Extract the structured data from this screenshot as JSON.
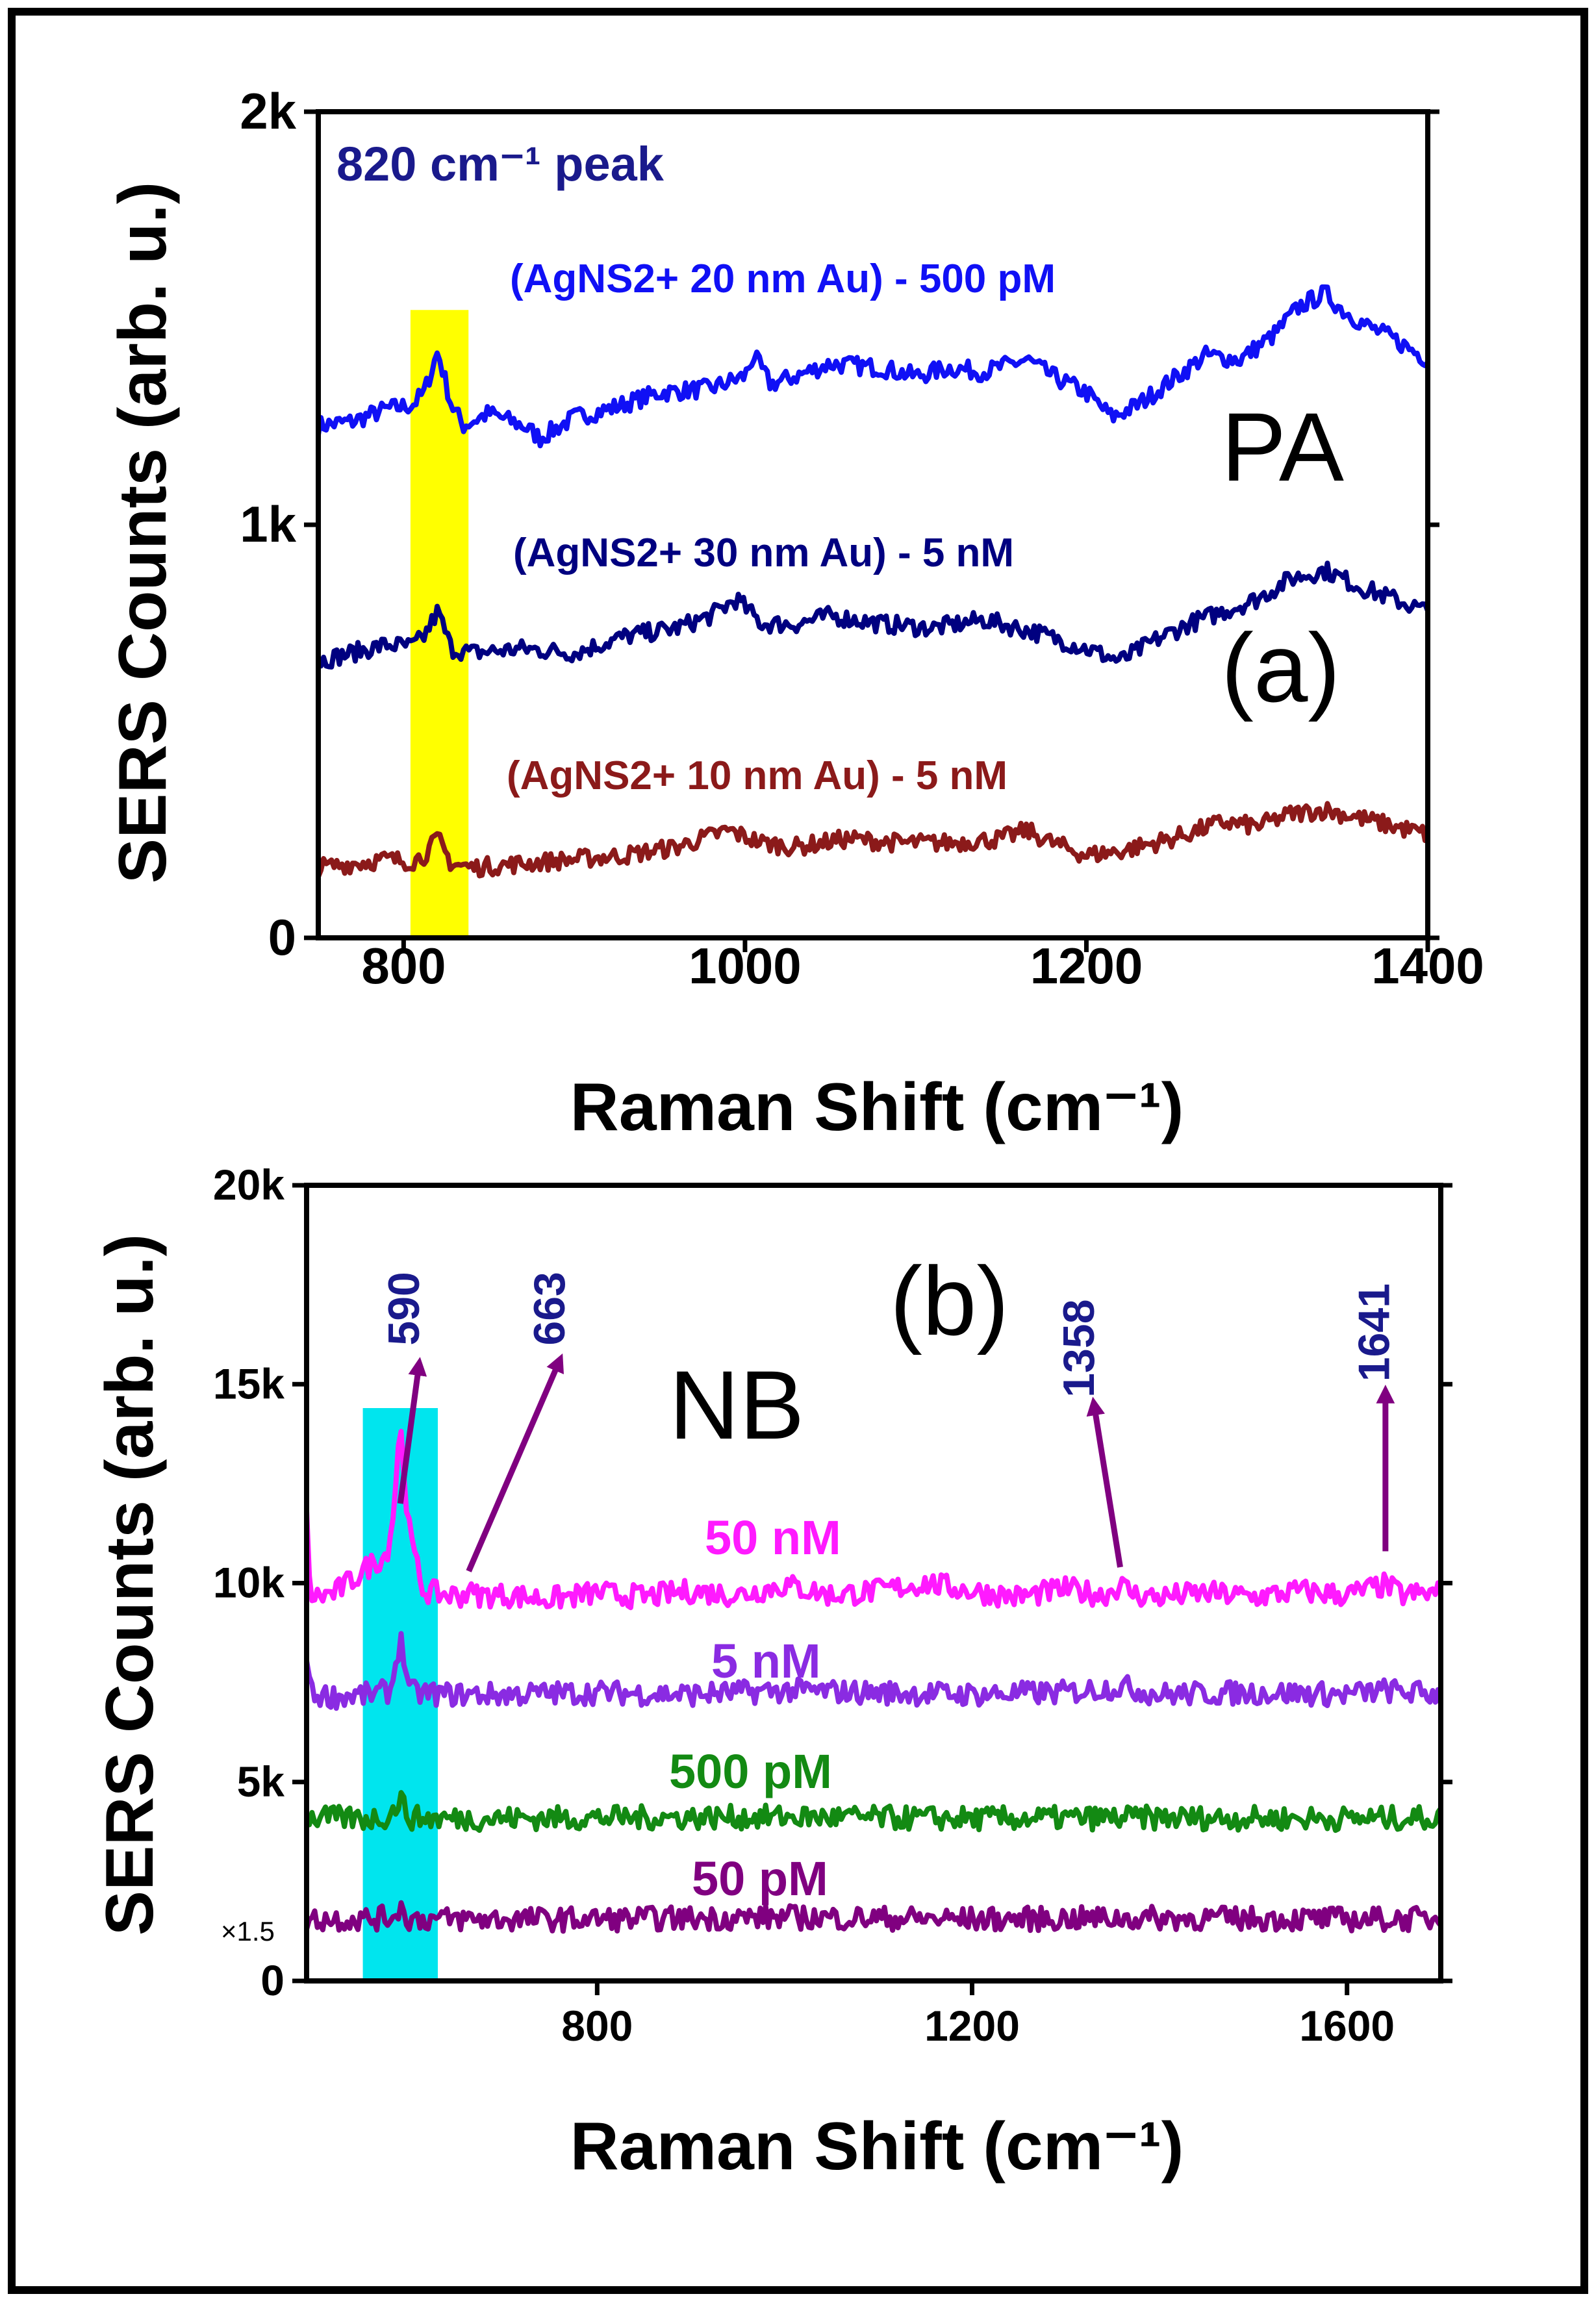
{
  "chart_data": [
    {
      "panel": "(a)",
      "type": "line",
      "xlabel": "Raman Shift (cm⁻¹)",
      "ylabel": "SERS Counts (arb. u.)",
      "xlim": [
        750,
        1400
      ],
      "ylim": [
        0,
        2000
      ],
      "xticks": [
        800,
        1000,
        1200,
        1400
      ],
      "xtick_labels": [
        "800",
        "1000",
        "1200",
        "1400"
      ],
      "yticks": [
        0,
        1000,
        2000
      ],
      "ytick_labels": [
        "0",
        "1k",
        "2k"
      ],
      "molecule_label": "PA",
      "peak_note": "820 cm⁻¹ peak",
      "highlight": {
        "x_start": 804,
        "x_end": 838,
        "y_max": 1520,
        "color": "#ffff00"
      },
      "series": [
        {
          "name": "(AgNS2+ 20 nm Au) - 500 pM",
          "color": "#1010f5",
          "x": [
            750,
            770,
            790,
            805,
            812,
            820,
            828,
            835,
            850,
            870,
            880,
            900,
            920,
            950,
            980,
            1000,
            1005,
            1015,
            1030,
            1050,
            1080,
            1100,
            1120,
            1140,
            1165,
            1180,
            1200,
            1215,
            1230,
            1250,
            1270,
            1290,
            1310,
            1325,
            1340,
            1350,
            1365,
            1380,
            1400
          ],
          "values": [
            1240,
            1250,
            1280,
            1290,
            1320,
            1420,
            1290,
            1240,
            1270,
            1240,
            1210,
            1260,
            1280,
            1320,
            1330,
            1360,
            1410,
            1340,
            1360,
            1390,
            1380,
            1360,
            1380,
            1370,
            1400,
            1360,
            1320,
            1260,
            1290,
            1350,
            1410,
            1400,
            1460,
            1530,
            1560,
            1520,
            1480,
            1450,
            1400
          ]
        },
        {
          "name": "(AgNS2+ 30 nm Au) - 5 nM",
          "color": "#000080",
          "x": [
            750,
            770,
            790,
            805,
            812,
            820,
            828,
            840,
            870,
            900,
            930,
            960,
            980,
            995,
            1010,
            1030,
            1050,
            1080,
            1110,
            1140,
            1170,
            1200,
            1220,
            1240,
            1260,
            1280,
            1300,
            1320,
            1340,
            1360,
            1380,
            1400
          ],
          "values": [
            670,
            690,
            710,
            705,
            730,
            790,
            700,
            690,
            700,
            690,
            730,
            750,
            780,
            820,
            760,
            760,
            780,
            760,
            750,
            770,
            740,
            700,
            670,
            720,
            760,
            790,
            820,
            870,
            890,
            850,
            820,
            790
          ]
        },
        {
          "name": "(AgNS2+ 10 nm Au) - 5 nM",
          "color": "#8b1a1a",
          "x": [
            750,
            770,
            790,
            805,
            812,
            820,
            828,
            840,
            870,
            900,
            930,
            960,
            990,
            1010,
            1030,
            1060,
            1090,
            1120,
            1150,
            1165,
            1180,
            1200,
            1220,
            1250,
            1280,
            1300,
            1320,
            1340,
            1360,
            1380,
            1400
          ],
          "values": [
            170,
            180,
            190,
            185,
            200,
            240,
            180,
            170,
            180,
            190,
            200,
            220,
            260,
            230,
            220,
            240,
            230,
            230,
            240,
            260,
            230,
            200,
            210,
            240,
            280,
            270,
            300,
            310,
            290,
            270,
            250
          ]
        }
      ]
    },
    {
      "panel": "(b)",
      "type": "line",
      "xlabel": "Raman Shift (cm⁻¹)",
      "ylabel": "SERS Counts (arb. u.)",
      "xlim": [
        490,
        1700
      ],
      "ylim": [
        0,
        20000
      ],
      "xticks": [
        800,
        1200,
        1600
      ],
      "xtick_labels": [
        "800",
        "1200",
        "1600"
      ],
      "yticks": [
        0,
        5000,
        10000,
        15000,
        20000
      ],
      "ytick_labels": [
        "0",
        "5k",
        "10k",
        "15k",
        "20k"
      ],
      "molecule_label": "NB",
      "scale_note": "×1.5",
      "highlight": {
        "x_start": 550,
        "x_end": 630,
        "y_max": 14400,
        "color": "#00e5ee"
      },
      "peak_labels": [
        "590",
        "663",
        "1358",
        "1641"
      ],
      "peak_positions": [
        590,
        663,
        1358,
        1641
      ],
      "series": [
        {
          "name": "50 nM",
          "color": "#ff1aff",
          "x": [
            490,
            492,
            495,
            500,
            520,
            540,
            560,
            575,
            582,
            588,
            591,
            595,
            600,
            608,
            615,
            640,
            660,
            663,
            666,
            700,
            750,
            800,
            850,
            900,
            950,
            1000,
            1050,
            1100,
            1150,
            1200,
            1250,
            1300,
            1340,
            1358,
            1375,
            1400,
            1450,
            1500,
            1550,
            1600,
            1641,
            1660,
            1700
          ],
          "values": [
            11600,
            10200,
            9700,
            9650,
            9750,
            10100,
            10500,
            10700,
            11600,
            13500,
            13700,
            12500,
            11200,
            10400,
            9800,
            9700,
            9700,
            10000,
            9700,
            9700,
            9600,
            9750,
            9650,
            9800,
            9700,
            9950,
            9700,
            9800,
            10000,
            9800,
            9650,
            9850,
            9700,
            9950,
            9700,
            9650,
            9750,
            9650,
            9800,
            9700,
            9950,
            9700,
            9750
          ]
        },
        {
          "name": "5 nM",
          "color": "#8a2be2",
          "x": [
            490,
            495,
            520,
            560,
            580,
            585,
            590,
            595,
            600,
            640,
            700,
            800,
            900,
            1000,
            1100,
            1200,
            1300,
            1358,
            1400,
            1500,
            1600,
            1641,
            1700
          ],
          "values": [
            8300,
            7200,
            7150,
            7200,
            7300,
            8000,
            8600,
            8000,
            7250,
            7200,
            7200,
            7250,
            7200,
            7300,
            7250,
            7200,
            7250,
            7400,
            7200,
            7250,
            7200,
            7300,
            7200
          ]
        },
        {
          "name": "500 pM",
          "color": "#138a13",
          "x": [
            490,
            560,
            580,
            585,
            590,
            595,
            600,
            640,
            800,
            1000,
            1200,
            1400,
            1600,
            1700
          ],
          "values": [
            4100,
            4080,
            4150,
            4400,
            4600,
            4300,
            4100,
            4080,
            4100,
            4120,
            4080,
            4100,
            4080,
            4100
          ]
        },
        {
          "name": "50 pM",
          "color": "#800080",
          "x": [
            490,
            560,
            580,
            585,
            590,
            595,
            600,
            640,
            800,
            1000,
            1200,
            1400,
            1600,
            1700
          ],
          "values": [
            1550,
            1560,
            1600,
            1750,
            1850,
            1650,
            1560,
            1550,
            1550,
            1600,
            1550,
            1580,
            1550,
            1560
          ]
        }
      ]
    }
  ],
  "annotation_colors": {
    "peak_label": "#1a1a8c",
    "arrow": "#800080",
    "molecule_text": "#000000",
    "peak_note": "#1a1a8c"
  }
}
